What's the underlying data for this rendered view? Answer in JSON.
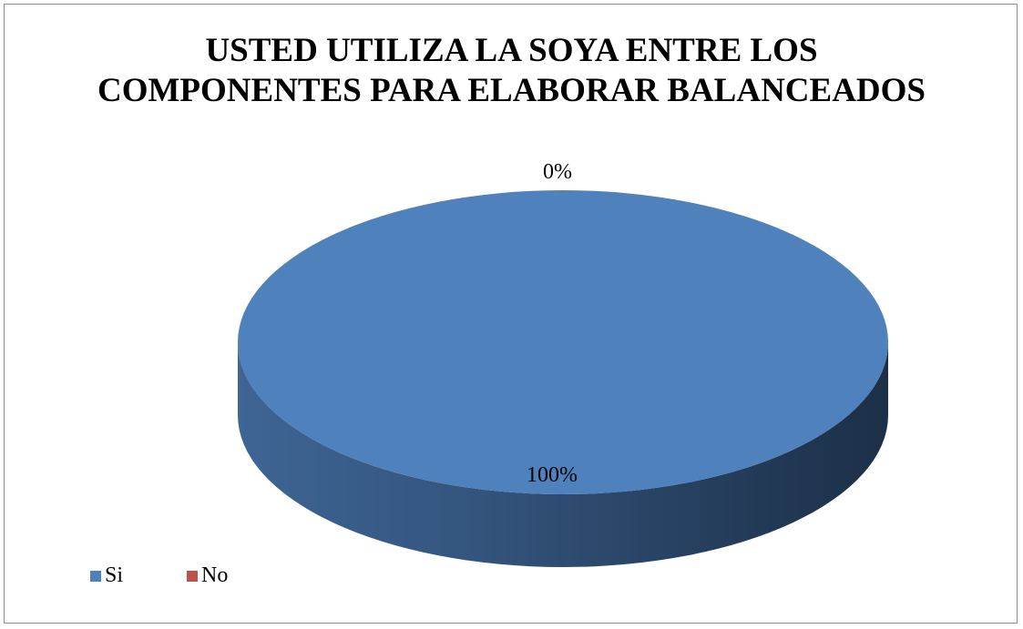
{
  "chart_data": {
    "type": "pie",
    "title_lines": [
      "USTED UTILIZA LA SOYA ENTRE LOS",
      "COMPONENTES PARA ELABORAR BALANCEADOS"
    ],
    "categories": [
      "Si",
      "No"
    ],
    "values": [
      100,
      0
    ],
    "data_labels": [
      "100%",
      "0%"
    ],
    "colors": [
      "#4F81BD",
      "#C0504D"
    ],
    "legend_position": "bottom-left",
    "style": "3d"
  }
}
